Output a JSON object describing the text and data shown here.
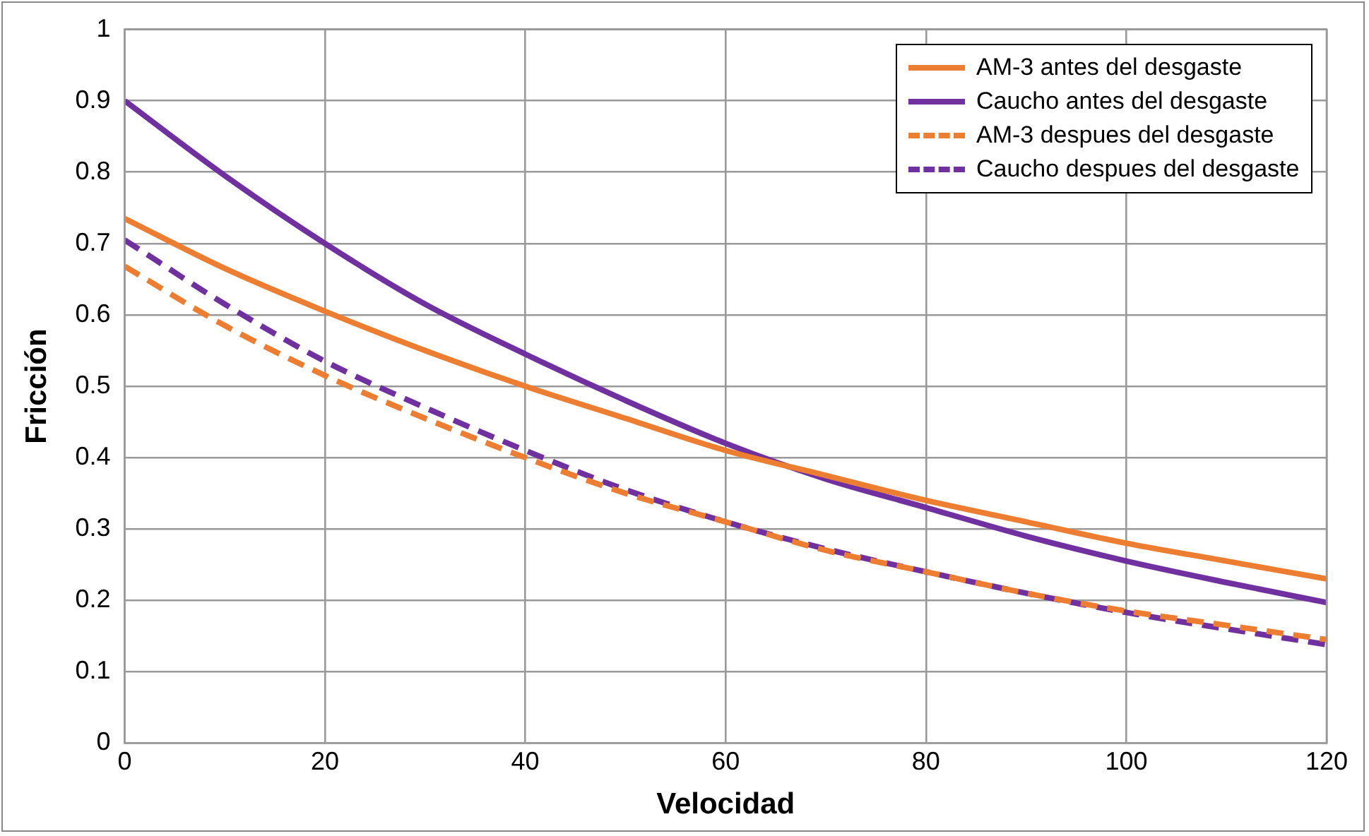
{
  "chart_data": {
    "type": "line",
    "xlabel": "Velocidad",
    "ylabel": "Fricción",
    "x": [
      0,
      10,
      20,
      30,
      40,
      50,
      60,
      70,
      80,
      90,
      100,
      110,
      120
    ],
    "xlim": [
      0,
      120
    ],
    "xticks": [
      0,
      20,
      40,
      60,
      80,
      100,
      120
    ],
    "ylim": [
      0,
      1
    ],
    "yticks": [
      0,
      0.1,
      0.2,
      0.3,
      0.4,
      0.5,
      0.6,
      0.7,
      0.8,
      0.9,
      1
    ],
    "grid": true,
    "legend": "top right",
    "marker": "none",
    "series": [
      {
        "name": "AM-3 antes del desgaste",
        "color": "#ed7d31",
        "line_style": "solid",
        "values": [
          0.735,
          0.665,
          0.605,
          0.55,
          0.5,
          0.455,
          0.41,
          0.375,
          0.34,
          0.31,
          0.28,
          0.255,
          0.23
        ]
      },
      {
        "name": "Caucho antes del desgaste",
        "color": "#7030a0",
        "line_style": "solid",
        "values": [
          0.9,
          0.795,
          0.7,
          0.615,
          0.545,
          0.48,
          0.42,
          0.37,
          0.33,
          0.29,
          0.255,
          0.225,
          0.197
        ]
      },
      {
        "name": "AM-3 despues del desgaste",
        "color": "#ed7d31",
        "line_style": "dashed",
        "values": [
          0.668,
          0.585,
          0.515,
          0.455,
          0.4,
          0.35,
          0.31,
          0.27,
          0.24,
          0.21,
          0.185,
          0.165,
          0.145
        ]
      },
      {
        "name": "Caucho despues del desgaste",
        "color": "#7030a0",
        "line_style": "dashed",
        "values": [
          0.705,
          0.615,
          0.535,
          0.47,
          0.41,
          0.355,
          0.31,
          0.272,
          0.24,
          0.21,
          0.183,
          0.16,
          0.138
        ]
      }
    ]
  }
}
